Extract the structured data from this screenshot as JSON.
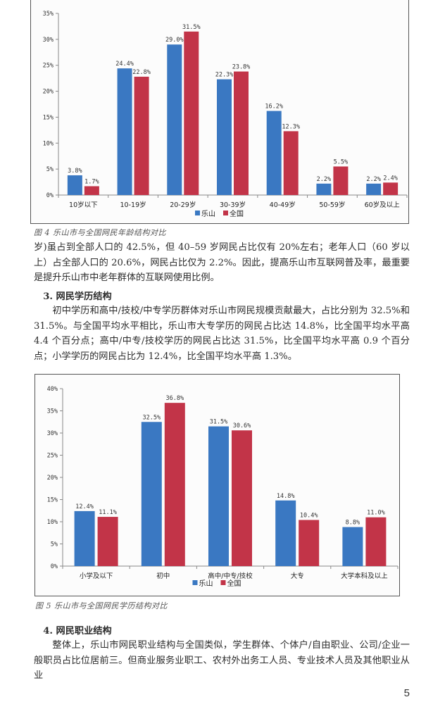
{
  "colors": {
    "leshan": "#3a78c2",
    "national": "#c23448",
    "axis": "#888888"
  },
  "chart_data": [
    {
      "type": "bar",
      "title": "图 4  乐山市与全国网民年龄结构对比",
      "categories": [
        "10岁以下",
        "10-19岁",
        "20-29岁",
        "30-39岁",
        "40-49岁",
        "50-59岁",
        "60岁及以上"
      ],
      "series": [
        {
          "name": "乐山",
          "values": [
            3.8,
            24.4,
            29.0,
            22.3,
            16.2,
            2.2,
            2.2
          ],
          "labels": [
            "3.8%",
            "24.4%",
            "29.0%",
            "22.3%",
            "16.2%",
            "2.2%",
            "2.2%"
          ]
        },
        {
          "name": "全国",
          "values": [
            1.7,
            22.8,
            31.5,
            23.8,
            12.3,
            5.5,
            2.4
          ],
          "labels": [
            "1.7%",
            "22.8%",
            "31.5%",
            "23.8%",
            "12.3%",
            "5.5%",
            "2.4%"
          ]
        }
      ],
      "yticks": [
        "0%",
        "5%",
        "10%",
        "15%",
        "20%",
        "25%",
        "30%",
        "35%"
      ],
      "ylim": [
        0,
        35
      ],
      "xlabel": "",
      "ylabel": "",
      "grid": false,
      "legend_position": "bottom-center"
    },
    {
      "type": "bar",
      "title": "图 5  乐山市与全国网民学历结构对比",
      "categories": [
        "小学及以下",
        "初中",
        "高中/中专/技校",
        "大专",
        "大学本科及以上"
      ],
      "series": [
        {
          "name": "乐山",
          "values": [
            12.4,
            32.5,
            31.5,
            14.8,
            8.8
          ],
          "labels": [
            "12.4%",
            "32.5%",
            "31.5%",
            "14.8%",
            "8.8%"
          ]
        },
        {
          "name": "全国",
          "values": [
            11.1,
            36.8,
            30.6,
            10.4,
            11.0
          ],
          "labels": [
            "11.1%",
            "36.8%",
            "30.6%",
            "10.4%",
            "11.0%"
          ]
        }
      ],
      "yticks": [
        "0%",
        "5%",
        "10%",
        "15%",
        "20%",
        "25%",
        "30%",
        "35%",
        "40%"
      ],
      "ylim": [
        0,
        40
      ],
      "xlabel": "",
      "ylabel": "",
      "grid": false,
      "legend_position": "bottom-center"
    }
  ],
  "captions": {
    "fig4": "图 4  乐山市与全国网民年龄结构对比",
    "fig5": "图 5  乐山市与全国网民学历结构对比"
  },
  "text": {
    "para1": "岁)虽占到全部人口的 42.5%，但 40–59 岁网民占比仅有 20%左右；老年人口（60 岁以上）占全部人口的 20.6%，网民占比仅为 2.2%。因此，提高乐山市互联网普及率，最重要是提升乐山市中老年群体的互联网使用比例。",
    "heading3": "3. 网民学历结构",
    "para2": "初中学历和高中/技校/中专学历群体对乐山市网民规模贡献最大，占比分别为 32.5%和 31.5%。与全国平均水平相比，乐山市大专学历的网民占比达 14.8%，比全国平均水平高 4.4 个百分点；高中/中专/技校学历的网民占比达 31.5%，比全国平均水平高 0.9 个百分点；小学学历的网民占比为 12.4%，比全国平均水平高 1.3%。",
    "heading4": "4. 网民职业结构",
    "para3": "整体上，乐山市网民职业结构与全国类似，学生群体、个体户/自由职业、公司/企业一般职员占比位居前三。但商业服务业职工、农村外出务工人员、专业技术人员及其他职业从业"
  },
  "page_number": "5"
}
